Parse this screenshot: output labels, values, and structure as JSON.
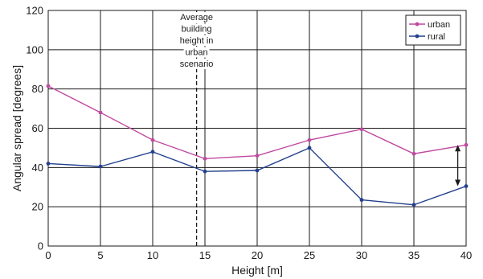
{
  "chart_data": {
    "type": "line",
    "xlabel": "Height [m]",
    "ylabel": "Angular spread [degrees]",
    "xlim": [
      0,
      40
    ],
    "ylim": [
      0,
      120
    ],
    "xticks": [
      "0",
      "5",
      "10",
      "15",
      "20",
      "25",
      "30",
      "35",
      "40"
    ],
    "yticks": [
      "0",
      "20",
      "40",
      "60",
      "80",
      "100",
      "120"
    ],
    "grid": true,
    "legend_position": "top-right",
    "series": [
      {
        "name": "urban",
        "color": "#c0499f",
        "x": [
          0,
          5,
          10,
          15,
          20,
          25,
          30,
          35,
          40
        ],
        "y": [
          81.5,
          68,
          54,
          44.5,
          46,
          54,
          59.5,
          47,
          51.5
        ]
      },
      {
        "name": "rural",
        "color": "#23408e",
        "x": [
          0,
          5,
          10,
          15,
          20,
          25,
          30,
          35,
          40
        ],
        "y": [
          42,
          40.5,
          48,
          38,
          38.5,
          50,
          23.5,
          21,
          30.5
        ]
      }
    ],
    "annotations": {
      "building_height_x": 14.2,
      "building_height_lines": [
        "Average",
        "building",
        "height in",
        "urban",
        "scenario"
      ],
      "difference_arrow": {
        "x": 39.2,
        "y_from": 51.5,
        "y_to": 30.5
      }
    }
  }
}
